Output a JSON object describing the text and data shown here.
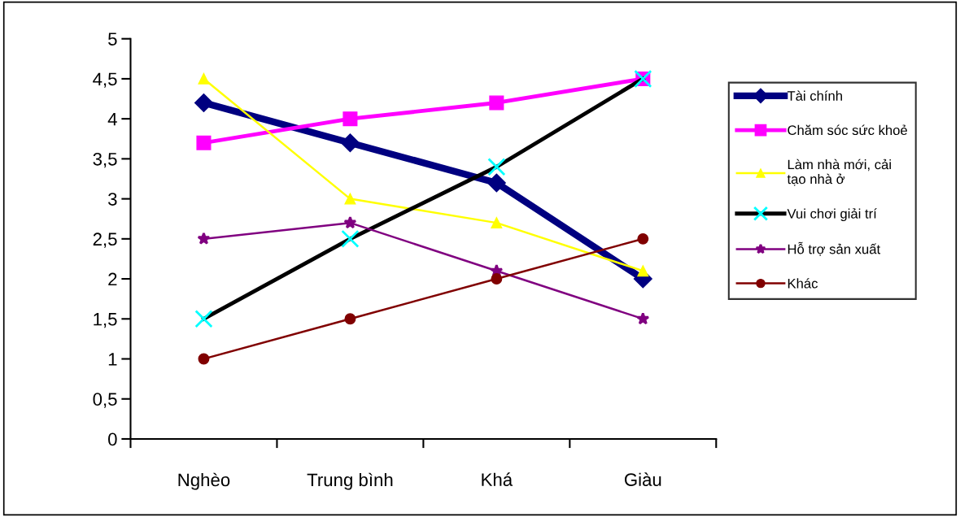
{
  "chart_data": {
    "type": "line",
    "categories": [
      "Nghèo",
      "Trung bình",
      "Khá",
      "Giàu"
    ],
    "series": [
      {
        "name": "Tài chính",
        "color": "#000080",
        "marker": "diamond",
        "values": [
          4.2,
          3.7,
          3.2,
          2.0
        ]
      },
      {
        "name": "Chăm sóc sức khoẻ",
        "color": "#ff00ff",
        "marker": "square",
        "values": [
          3.7,
          4.0,
          4.2,
          4.5
        ]
      },
      {
        "name": "Làm nhà mới, cải\ntạo nhà ở",
        "color": "#ffff00",
        "marker": "triangle",
        "values": [
          4.5,
          3.0,
          2.7,
          2.1
        ]
      },
      {
        "name": "Vui chơi giải trí",
        "color": "#000000",
        "marker": "cross",
        "colors": [
          "#00ffff",
          "#00ffff",
          "#00ffff",
          "#00ffff"
        ],
        "values": [
          1.5,
          2.5,
          3.4,
          4.5
        ]
      },
      {
        "name": "Hỗ trợ sản xuất",
        "color": "#800080",
        "marker": "star",
        "values": [
          2.5,
          2.7,
          2.1,
          1.5
        ]
      },
      {
        "name": "Khác",
        "color": "#800000",
        "marker": "circle",
        "values": [
          1.0,
          1.5,
          2.0,
          2.5
        ]
      }
    ],
    "ylim": [
      0,
      5
    ],
    "yticks": [
      0,
      {
        "value": 0.5,
        "label": "0,5"
      },
      1,
      {
        "value": 1.5,
        "label": "1,5"
      },
      2,
      {
        "value": 2.5,
        "label": "2,5"
      },
      3,
      {
        "value": 3.5,
        "label": "3,5"
      },
      4,
      {
        "value": 4.5,
        "label": "4,5"
      },
      5
    ],
    "grid": false,
    "legend": "right"
  }
}
